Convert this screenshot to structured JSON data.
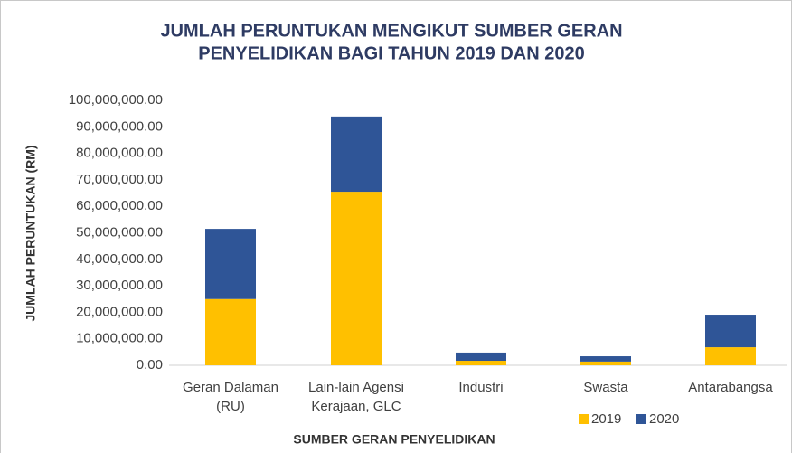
{
  "chart_data": {
    "type": "stacked_bar",
    "title": [
      "JUMLAH PERUNTUKAN  MENGIKUT SUMBER GERAN",
      "PENYELIDIKAN BAGI TAHUN 2019 DAN 2020"
    ],
    "x_label": "SUMBER GERAN PENYELIDIKAN",
    "y_label": "JUMLAH PERUNTUKAN  (RM)",
    "categories": [
      [
        "Geran Dalaman",
        "(RU)"
      ],
      [
        "Lain-lain Agensi",
        "Kerajaan, GLC"
      ],
      [
        "Industri"
      ],
      [
        "Swasta"
      ],
      [
        "Antarabangsa"
      ]
    ],
    "series": [
      {
        "name": "2019",
        "color": "#FFC000",
        "values": [
          25000000,
          65500000,
          1700000,
          1400000,
          6800000
        ]
      },
      {
        "name": "2020",
        "color": "#2F5597",
        "values": [
          26500000,
          28400000,
          3100000,
          2000000,
          12300000
        ]
      }
    ],
    "ylim": [
      0,
      100000000
    ],
    "yticks": [
      {
        "value": 0,
        "label": "0.00"
      },
      {
        "value": 10000000,
        "label": "10,000,000.00"
      },
      {
        "value": 20000000,
        "label": "20,000,000.00"
      },
      {
        "value": 30000000,
        "label": "30,000,000.00"
      },
      {
        "value": 40000000,
        "label": "40,000,000.00"
      },
      {
        "value": 50000000,
        "label": "50,000,000.00"
      },
      {
        "value": 60000000,
        "label": "60,000,000.00"
      },
      {
        "value": 70000000,
        "label": "70,000,000.00"
      },
      {
        "value": 80000000,
        "label": "80,000,000.00"
      },
      {
        "value": 90000000,
        "label": "90,000,000.00"
      },
      {
        "value": 100000000,
        "label": "100,000,000.00"
      }
    ],
    "legend": "bottom-right"
  }
}
